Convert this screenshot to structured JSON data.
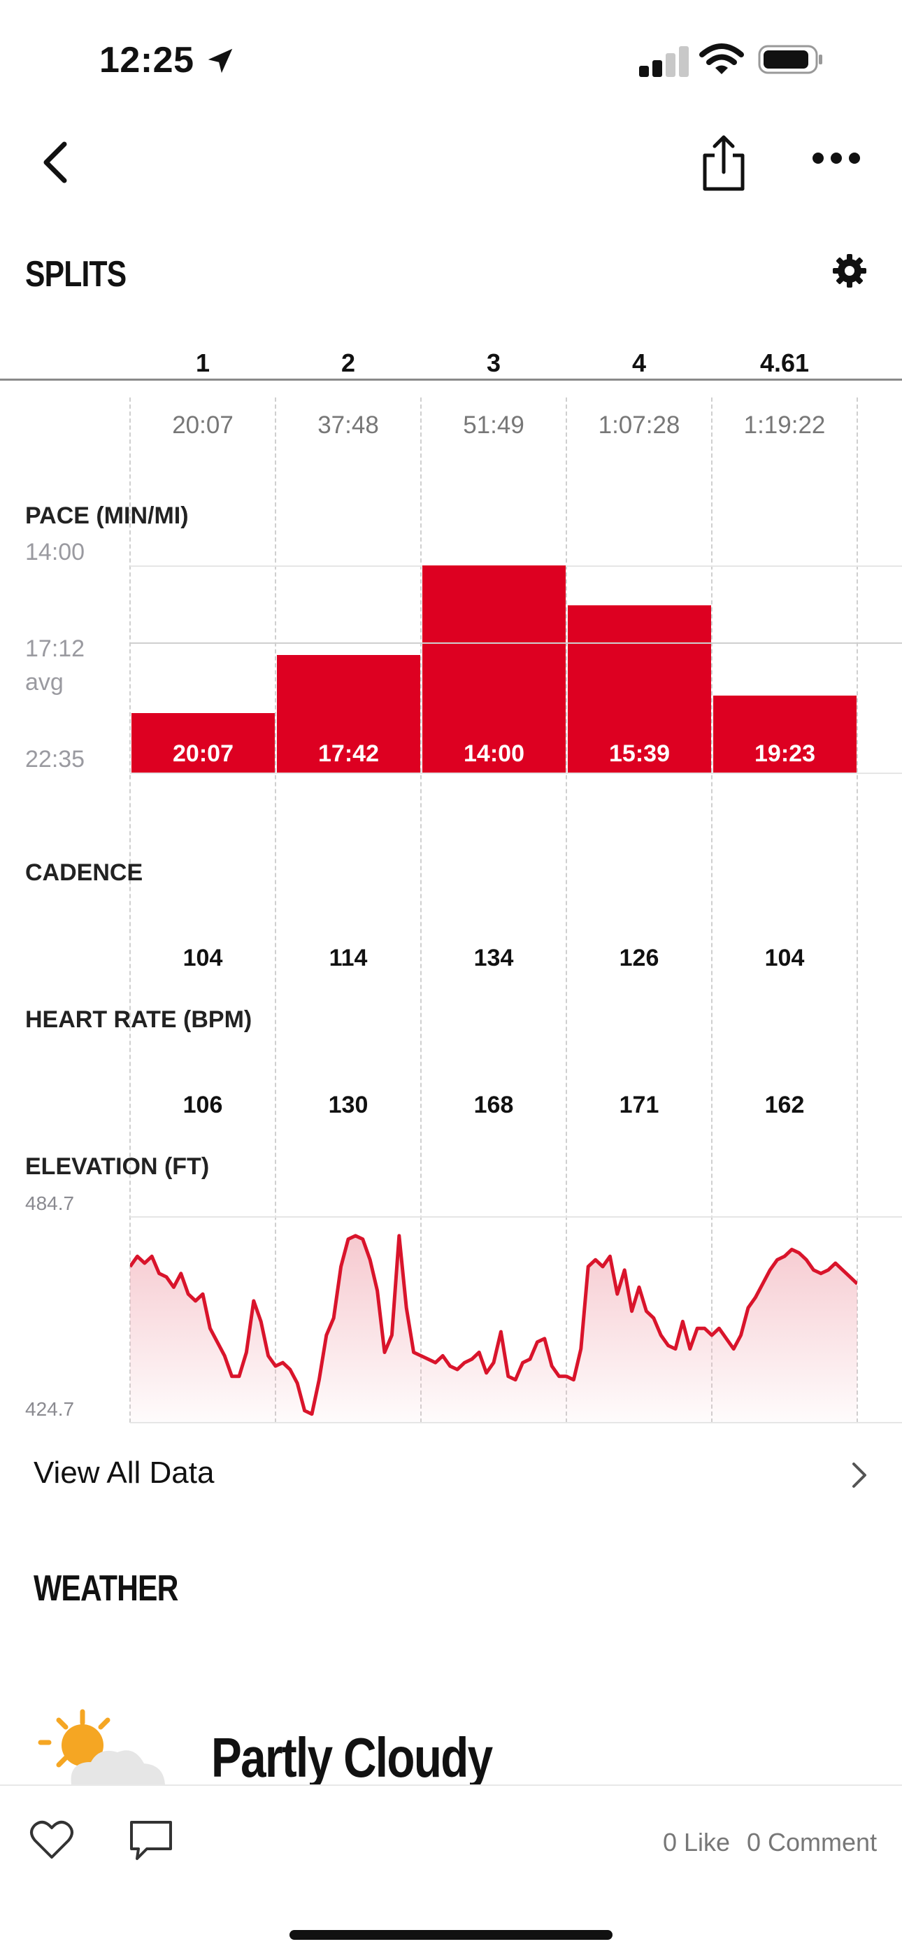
{
  "status_bar": {
    "time": "12:25"
  },
  "splits": {
    "title": "SPLITS",
    "mile_headers": [
      "1",
      "2",
      "3",
      "4",
      "4.61"
    ],
    "elapsed_times": [
      "20:07",
      "37:48",
      "51:49",
      "1:07:28",
      "1:19:22"
    ]
  },
  "pace": {
    "label": "PACE (MIN/MI)",
    "axis": {
      "top": "14:00",
      "mid": "17:12",
      "avg": "avg",
      "bottom": "22:35"
    },
    "splits": [
      "20:07",
      "17:42",
      "14:00",
      "15:39",
      "19:23"
    ],
    "values_min": [
      20.12,
      17.7,
      14.0,
      15.65,
      19.38
    ],
    "axis_range_min": [
      14.0,
      22.583
    ],
    "avg_min": 17.2,
    "color": "#dd0021"
  },
  "cadence": {
    "label": "CADENCE",
    "values": [
      "104",
      "114",
      "134",
      "126",
      "104"
    ]
  },
  "heart_rate": {
    "label": "HEART RATE (BPM)",
    "values": [
      "106",
      "130",
      "168",
      "171",
      "162"
    ]
  },
  "elevation": {
    "label": "ELEVATION (FT)",
    "max_label": "484.7",
    "min_label": "424.7",
    "range_ft": [
      424.7,
      484.7
    ],
    "profile_ft": [
      470,
      473,
      471,
      473,
      468,
      467,
      464,
      468,
      462,
      460,
      462,
      452,
      448,
      444,
      438,
      438,
      445,
      460,
      454,
      444,
      441,
      442,
      440,
      436,
      428,
      427,
      437,
      450,
      455,
      470,
      478,
      479,
      478,
      472,
      463,
      445,
      450,
      479,
      458,
      445,
      444,
      443,
      442,
      444,
      441,
      440,
      442,
      443,
      445,
      439,
      442,
      451,
      438,
      437,
      442,
      443,
      448,
      449,
      441,
      438,
      438,
      437,
      446,
      470,
      472,
      470,
      473,
      462,
      469,
      457,
      464,
      457,
      455,
      450,
      447,
      446,
      454,
      446,
      452,
      452,
      450,
      452,
      449,
      446,
      450,
      458,
      461,
      465,
      469,
      472,
      473,
      475,
      474,
      472,
      469,
      468,
      469,
      471,
      469,
      467,
      465
    ],
    "color": "#d9142b"
  },
  "view_all": {
    "label": "View All Data"
  },
  "weather": {
    "title": "WEATHER",
    "condition": "Partly Cloudy",
    "icon": "partly-cloudy-icon"
  },
  "footer": {
    "likes": "0 Like",
    "comments": "0 Comment"
  }
}
